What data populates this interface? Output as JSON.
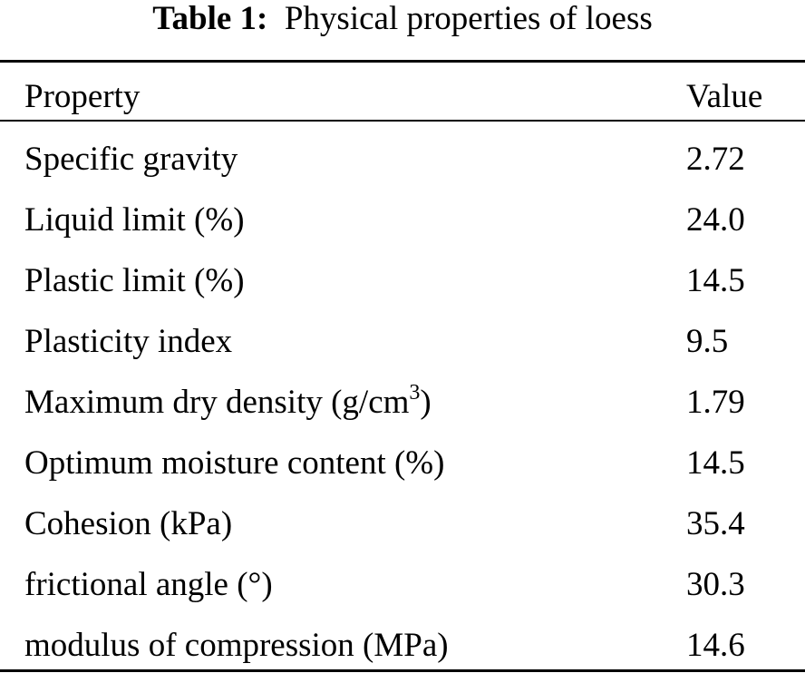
{
  "caption": {
    "label": "Table 1:",
    "title": "Physical properties of loess"
  },
  "table": {
    "headers": {
      "property": "Property",
      "value": "Value"
    },
    "rows": [
      {
        "property": "Specific gravity",
        "value": "2.72"
      },
      {
        "property": "Liquid limit (%)",
        "value": "24.0"
      },
      {
        "property": "Plastic limit (%)",
        "value": "14.5"
      },
      {
        "property": "Plasticity index",
        "value": "9.5"
      },
      {
        "property_pre": "Maximum dry density (g/cm",
        "property_sup": "3",
        "property_post": ")",
        "value": "1.79"
      },
      {
        "property": "Optimum moisture content (%)",
        "value": "14.5"
      },
      {
        "property": "Cohesion (kPa)",
        "value": "35.4"
      },
      {
        "property": "frictional angle (°)",
        "value": "30.3"
      },
      {
        "property": "modulus of compression (MPa)",
        "value": "14.6"
      }
    ]
  }
}
